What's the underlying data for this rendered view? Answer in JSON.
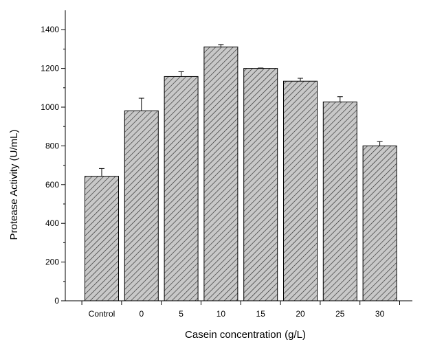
{
  "chart_data": {
    "type": "bar",
    "title": "",
    "xlabel": "Casein concentration (g/L)",
    "ylabel": "Protease Activity (U/mL)",
    "categories": [
      "Control",
      "0",
      "5",
      "10",
      "15",
      "20",
      "25",
      "30"
    ],
    "values": [
      643,
      981,
      1158,
      1311,
      1200,
      1134,
      1027,
      800
    ],
    "errors": [
      40,
      65,
      25,
      12,
      2,
      15,
      27,
      22
    ],
    "ylim": [
      0,
      1500
    ],
    "yticks": [
      0,
      200,
      400,
      600,
      800,
      1000,
      1200,
      1400
    ],
    "grid": false,
    "bar_fill": "#c8c8c8",
    "bar_pattern": "diagonal-hatch",
    "bar_edge": "#000000"
  }
}
